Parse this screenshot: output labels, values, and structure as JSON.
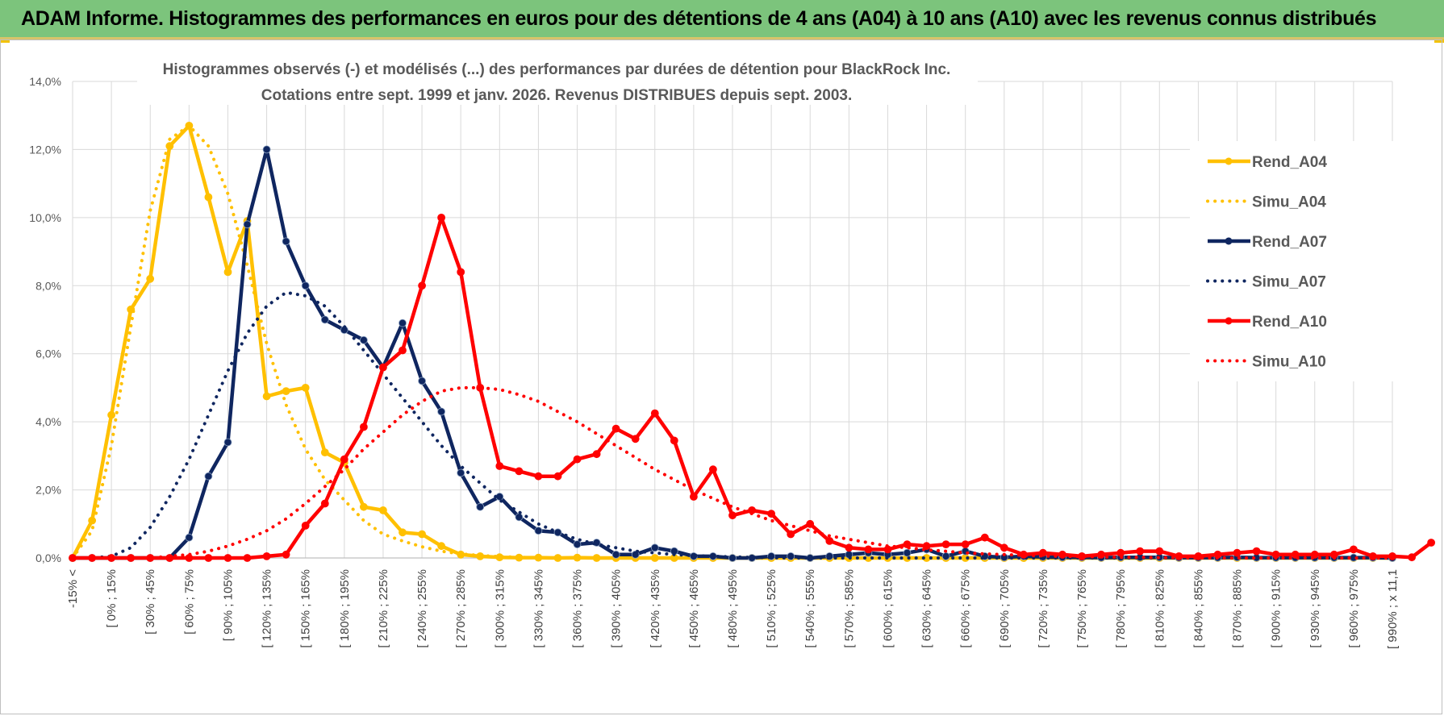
{
  "header": {
    "title": "ADAM Informe. Histogrammes des performances en euros pour des détentions de 4 ans (A04) à 10 ans (A10) avec les revenus connus distribués"
  },
  "chart_data": {
    "type": "line",
    "title": "Histogrammes observés (-) et modélisés (...) des performances par durées de détention pour BlackRock Inc.",
    "subtitle": "Cotations entre sept. 1999 et janv. 2026. Revenus DISTRIBUES depuis sept. 2003.",
    "xlabel": "",
    "ylabel": "",
    "ylim": [
      0,
      14
    ],
    "y_ticks": [
      "0,0%",
      "2,0%",
      "4,0%",
      "6,0%",
      "8,0%",
      "10,0%",
      "12,0%",
      "14,0%"
    ],
    "grid": true,
    "legend_position": "right",
    "x_tick_labels": [
      "-15% <",
      "[ 0% ; 15%",
      "[ 30% ; 45%",
      "[ 60% ; 75%",
      "[ 90% ; 105%",
      "[ 120% ; 135%",
      "[ 150% ; 165%",
      "[ 180% ; 195%",
      "[ 210% ; 225%",
      "[ 240% ; 255%",
      "[ 270% ; 285%",
      "[ 300% ; 315%",
      "[ 330% ; 345%",
      "[ 360% ; 375%",
      "[ 390% ; 405%",
      "[ 420% ; 435%",
      "[ 450% ; 465%",
      "[ 480% ; 495%",
      "[ 510% ; 525%",
      "[ 540% ; 555%",
      "[ 570% ; 585%",
      "[ 600% ; 615%",
      "[ 630% ; 645%",
      "[ 660% ; 675%",
      "[ 690% ; 705%",
      "[ 720% ; 735%",
      "[ 750% ; 765%",
      "[ 780% ; 795%",
      "[ 810% ; 825%",
      "[ 840% ; 855%",
      "[ 870% ; 885%",
      "[ 900% ; 915%",
      "[ 930% ; 945%",
      "[ 960% ; 975%",
      "[ 990% ; x 11,1"
    ],
    "series": [
      {
        "name": "Rend_A04",
        "style": "solid",
        "color": "#FFC000",
        "values": [
          0,
          1.1,
          4.2,
          7.3,
          8.2,
          12.1,
          12.7,
          10.6,
          8.4,
          9.9,
          4.75,
          4.9,
          5.0,
          3.1,
          2.8,
          1.5,
          1.4,
          0.75,
          0.7,
          0.35,
          0.1,
          0.05,
          0.02,
          0.01,
          0.01,
          0,
          0.01,
          0,
          0,
          0,
          0,
          0,
          0,
          0,
          0,
          0,
          0,
          0,
          0,
          0,
          0,
          0,
          0,
          0,
          0,
          0,
          0,
          0,
          0,
          0,
          0,
          0,
          0,
          0,
          0,
          0,
          0,
          0,
          0,
          0,
          0,
          0,
          0,
          0,
          0,
          0,
          0,
          0,
          0
        ]
      },
      {
        "name": "Simu_A04",
        "style": "dotted",
        "color": "#FFC000",
        "values": [
          0,
          0.8,
          3.3,
          6.8,
          10.2,
          12.3,
          12.7,
          12.1,
          10.7,
          8.6,
          6.3,
          4.5,
          3.2,
          2.3,
          1.7,
          1.1,
          0.7,
          0.5,
          0.33,
          0.2,
          0.12,
          0.07,
          0.04,
          0.02,
          0.01,
          0,
          0,
          0,
          0,
          0,
          0,
          0,
          0,
          0,
          0,
          0,
          0,
          0,
          0,
          0,
          0,
          0,
          0,
          0,
          0,
          0,
          0,
          0,
          0,
          0,
          0,
          0,
          0,
          0,
          0,
          0,
          0,
          0,
          0,
          0,
          0,
          0,
          0,
          0,
          0,
          0,
          0,
          0,
          0
        ]
      },
      {
        "name": "Rend_A07",
        "style": "solid",
        "color": "#0F2660",
        "values": [
          0,
          0,
          0,
          0,
          0,
          0,
          0.6,
          2.4,
          3.4,
          9.8,
          12.0,
          9.3,
          8.0,
          7.0,
          6.7,
          6.4,
          5.6,
          6.9,
          5.2,
          4.3,
          2.5,
          1.5,
          1.8,
          1.2,
          0.8,
          0.75,
          0.4,
          0.45,
          0.1,
          0.1,
          0.3,
          0.2,
          0.05,
          0.05,
          0,
          0,
          0.05,
          0.05,
          0,
          0.05,
          0.1,
          0.15,
          0.1,
          0.15,
          0.25,
          0.05,
          0.2,
          0.05,
          0.02,
          0.05,
          0.03,
          0.02,
          0.02,
          0.01,
          0.02,
          0.02,
          0.02,
          0.01,
          0.01,
          0.01,
          0.02,
          0.01,
          0.01,
          0.01,
          0.01,
          0.01,
          0.01,
          0.01,
          0
        ]
      },
      {
        "name": "Simu_A07",
        "style": "dotted",
        "color": "#0F2660",
        "values": [
          0,
          0,
          0.05,
          0.3,
          0.9,
          1.8,
          2.9,
          4.2,
          5.5,
          6.6,
          7.4,
          7.8,
          7.7,
          7.4,
          6.8,
          6.1,
          5.4,
          4.7,
          4.0,
          3.3,
          2.7,
          2.2,
          1.7,
          1.35,
          1.0,
          0.75,
          0.55,
          0.4,
          0.3,
          0.2,
          0.15,
          0.1,
          0.07,
          0.05,
          0.03,
          0.02,
          0.01,
          0,
          0,
          0,
          0,
          0,
          0,
          0,
          0,
          0,
          0,
          0,
          0,
          0,
          0,
          0,
          0,
          0,
          0,
          0,
          0,
          0,
          0,
          0,
          0,
          0,
          0,
          0,
          0,
          0,
          0,
          0,
          0
        ]
      },
      {
        "name": "Rend_A10",
        "style": "solid",
        "color": "#FF0000",
        "values": [
          0,
          0,
          0,
          0,
          0,
          0,
          0,
          0,
          0,
          0,
          0.05,
          0.1,
          0.95,
          1.6,
          2.9,
          3.85,
          5.6,
          6.1,
          8.0,
          10.0,
          8.4,
          5.0,
          2.7,
          2.55,
          2.4,
          2.4,
          2.9,
          3.05,
          3.8,
          3.5,
          4.25,
          3.45,
          1.8,
          2.6,
          1.25,
          1.4,
          1.3,
          0.7,
          1.0,
          0.5,
          0.3,
          0.25,
          0.25,
          0.4,
          0.35,
          0.4,
          0.4,
          0.6,
          0.3,
          0.1,
          0.15,
          0.1,
          0.05,
          0.1,
          0.15,
          0.2,
          0.2,
          0.05,
          0.05,
          0.1,
          0.15,
          0.2,
          0.1,
          0.1,
          0.1,
          0.1,
          0.25,
          0.05,
          0.05,
          0.02,
          0.45
        ]
      },
      {
        "name": "Simu_A10",
        "style": "dotted",
        "color": "#FF0000",
        "values": [
          0,
          0,
          0,
          0,
          0,
          0.05,
          0.1,
          0.2,
          0.35,
          0.55,
          0.8,
          1.15,
          1.6,
          2.1,
          2.6,
          3.2,
          3.7,
          4.2,
          4.6,
          4.9,
          5.0,
          5.0,
          4.95,
          4.8,
          4.6,
          4.3,
          4.0,
          3.65,
          3.3,
          2.95,
          2.6,
          2.3,
          2.0,
          1.75,
          1.5,
          1.3,
          1.1,
          0.95,
          0.8,
          0.65,
          0.55,
          0.45,
          0.35,
          0.3,
          0.24,
          0.2,
          0.15,
          0.12,
          0.1,
          0.08,
          0.06,
          0.05,
          0.04,
          0.03,
          0.02,
          0.02,
          0.01,
          0.01,
          0,
          0,
          0,
          0,
          0,
          0,
          0,
          0,
          0,
          0,
          0
        ]
      }
    ]
  }
}
